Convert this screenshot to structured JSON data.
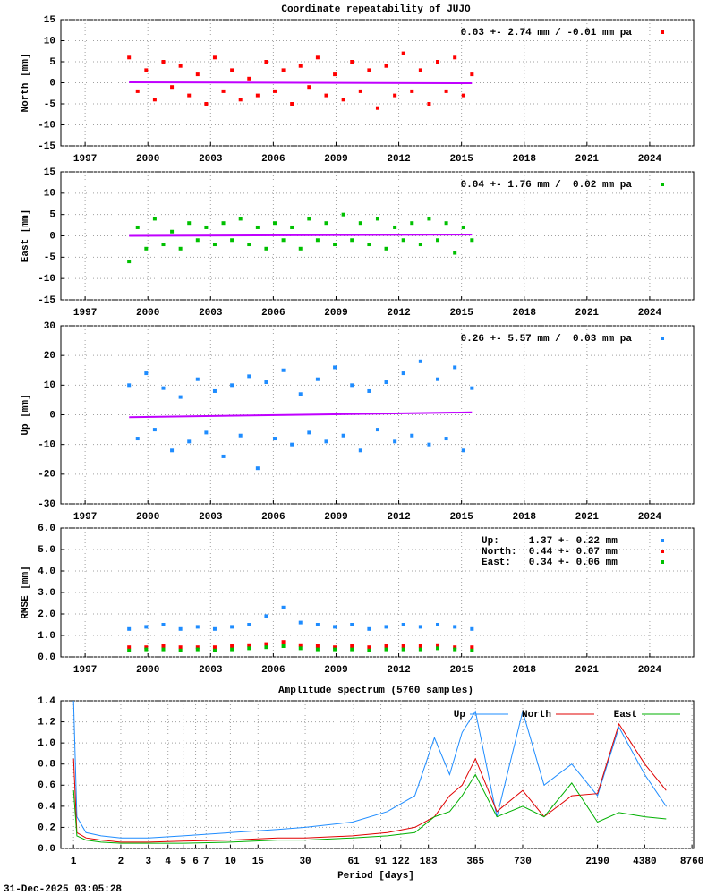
{
  "chart_data": [
    {
      "type": "scatter",
      "title": "Coordinate repeatability of JUJO",
      "ylabel": "North [mm]",
      "xlim": [
        1995.84,
        2026.1
      ],
      "xticks": [
        1997,
        2000,
        2003,
        2006,
        2009,
        2012,
        2015,
        2018,
        2021,
        2024
      ],
      "ylim": [
        -15,
        15
      ],
      "yticks": [
        -15,
        -10,
        -5,
        0,
        5,
        10,
        15
      ],
      "grid": true,
      "legend": "upper right",
      "x": [
        1999.1,
        1999.51,
        1999.92,
        2000.33,
        2000.74,
        2001.15,
        2001.56,
        2001.97,
        2002.38,
        2002.79,
        2003.2,
        2003.61,
        2004.02,
        2004.43,
        2004.84,
        2005.25,
        2005.66,
        2006.07,
        2006.48,
        2006.89,
        2007.3,
        2007.71,
        2008.12,
        2008.53,
        2008.94,
        2009.35,
        2009.76,
        2010.17,
        2010.58,
        2010.99,
        2011.4,
        2011.81,
        2012.22,
        2012.63,
        2013.04,
        2013.45,
        2013.86,
        2014.27,
        2014.68,
        2015.09,
        2015.5
      ],
      "series": [
        {
          "name": "0.03 +- 2.74 mm / -0.01 mm pa",
          "color": "#ff0000",
          "values": [
            6,
            -2,
            3,
            -4,
            5,
            -1,
            4,
            -3,
            2,
            -5,
            6,
            -2,
            3,
            -4,
            1,
            -3,
            5,
            -2,
            3,
            -5,
            4,
            -1,
            6,
            -3,
            2,
            -4,
            5,
            -2,
            3,
            -6,
            4,
            -3,
            7,
            -2,
            3,
            -5,
            5,
            -2,
            6,
            -3,
            2
          ]
        }
      ],
      "trend": {
        "x": [
          1999.1,
          2015.5
        ],
        "values": [
          0.1,
          -0.1
        ],
        "color": "#c000ff"
      }
    },
    {
      "type": "scatter",
      "ylabel": "East [mm]",
      "xlim": [
        1995.84,
        2026.1
      ],
      "xticks": [
        1997,
        2000,
        2003,
        2006,
        2009,
        2012,
        2015,
        2018,
        2021,
        2024
      ],
      "ylim": [
        -15,
        15
      ],
      "yticks": [
        -15,
        -10,
        -5,
        0,
        5,
        10,
        15
      ],
      "grid": true,
      "legend": "upper right",
      "x": [
        1999.1,
        1999.51,
        1999.92,
        2000.33,
        2000.74,
        2001.15,
        2001.56,
        2001.97,
        2002.38,
        2002.79,
        2003.2,
        2003.61,
        2004.02,
        2004.43,
        2004.84,
        2005.25,
        2005.66,
        2006.07,
        2006.48,
        2006.89,
        2007.3,
        2007.71,
        2008.12,
        2008.53,
        2008.94,
        2009.35,
        2009.76,
        2010.17,
        2010.58,
        2010.99,
        2011.4,
        2011.81,
        2012.22,
        2012.63,
        2013.04,
        2013.45,
        2013.86,
        2014.27,
        2014.68,
        2015.09,
        2015.5
      ],
      "series": [
        {
          "name": "0.04 +- 1.76 mm /  0.02 mm pa",
          "color": "#00c000",
          "values": [
            -6,
            2,
            -3,
            4,
            -2,
            1,
            -3,
            3,
            -1,
            2,
            -2,
            3,
            -1,
            4,
            -2,
            2,
            -3,
            3,
            -1,
            2,
            -3,
            4,
            -1,
            3,
            -2,
            5,
            -1,
            3,
            -2,
            4,
            -3,
            2,
            -1,
            3,
            -2,
            4,
            -1,
            3,
            -4,
            2,
            -1
          ]
        }
      ],
      "trend": {
        "x": [
          1999.1,
          2015.5
        ],
        "values": [
          0,
          0.3
        ],
        "color": "#c000ff"
      }
    },
    {
      "type": "scatter",
      "ylabel": "Up [mm]",
      "xlim": [
        1995.84,
        2026.1
      ],
      "xticks": [
        1997,
        2000,
        2003,
        2006,
        2009,
        2012,
        2015,
        2018,
        2021,
        2024
      ],
      "ylim": [
        -30,
        30
      ],
      "yticks": [
        -30,
        -20,
        -10,
        0,
        10,
        20,
        30
      ],
      "grid": true,
      "legend": "upper right",
      "x": [
        1999.1,
        1999.51,
        1999.92,
        2000.33,
        2000.74,
        2001.15,
        2001.56,
        2001.97,
        2002.38,
        2002.79,
        2003.2,
        2003.61,
        2004.02,
        2004.43,
        2004.84,
        2005.25,
        2005.66,
        2006.07,
        2006.48,
        2006.89,
        2007.3,
        2007.71,
        2008.12,
        2008.53,
        2008.94,
        2009.35,
        2009.76,
        2010.17,
        2010.58,
        2010.99,
        2011.4,
        2011.81,
        2012.22,
        2012.63,
        2013.04,
        2013.45,
        2013.86,
        2014.27,
        2014.68,
        2015.09,
        2015.5
      ],
      "series": [
        {
          "name": "0.26 +- 5.57 mm /  0.03 mm pa",
          "color": "#1e8cff",
          "values": [
            10,
            -8,
            14,
            -5,
            9,
            -12,
            6,
            -9,
            12,
            -6,
            8,
            -14,
            10,
            -7,
            13,
            -18,
            11,
            -8,
            15,
            -10,
            7,
            -6,
            12,
            -9,
            16,
            -7,
            10,
            -12,
            8,
            -5,
            11,
            -9,
            14,
            -7,
            18,
            -10,
            12,
            -8,
            16,
            -12,
            9
          ]
        }
      ],
      "trend": {
        "x": [
          1999.1,
          2015.5
        ],
        "values": [
          -0.8,
          0.8
        ],
        "color": "#c000ff"
      }
    },
    {
      "type": "scatter",
      "ylabel": "RMSE [mm]",
      "xlim": [
        1995.84,
        2026.1
      ],
      "xticks": [
        1997,
        2000,
        2003,
        2006,
        2009,
        2012,
        2015,
        2018,
        2021,
        2024
      ],
      "ylim": [
        0,
        6
      ],
      "yticks": [
        {
          "value": 0,
          "label": "0.0"
        },
        {
          "value": 1,
          "label": "1.0"
        },
        {
          "value": 2,
          "label": "2.0"
        },
        {
          "value": 3,
          "label": "3.0"
        },
        {
          "value": 4,
          "label": "4.0"
        },
        {
          "value": 5,
          "label": "5.0"
        },
        {
          "value": 6,
          "label": "6.0"
        }
      ],
      "grid": true,
      "legend": "upper right",
      "x": [
        1999.1,
        1999.92,
        2000.74,
        2001.56,
        2002.38,
        2003.2,
        2004.02,
        2004.84,
        2005.66,
        2006.48,
        2007.3,
        2008.12,
        2008.94,
        2009.76,
        2010.58,
        2011.4,
        2012.22,
        2013.04,
        2013.86,
        2014.68,
        2015.5
      ],
      "series": [
        {
          "name": "Up:     1.37 +- 0.22 mm",
          "color": "#1e8cff",
          "values": [
            1.3,
            1.4,
            1.5,
            1.3,
            1.4,
            1.3,
            1.4,
            1.5,
            1.9,
            2.3,
            1.6,
            1.5,
            1.4,
            1.5,
            1.3,
            1.4,
            1.5,
            1.4,
            1.5,
            1.4,
            1.3
          ]
        },
        {
          "name": "North:  0.44 +- 0.07 mm",
          "color": "#ff0000",
          "values": [
            0.45,
            0.45,
            0.5,
            0.45,
            0.45,
            0.45,
            0.5,
            0.55,
            0.6,
            0.7,
            0.55,
            0.5,
            0.45,
            0.5,
            0.45,
            0.5,
            0.5,
            0.5,
            0.55,
            0.45,
            0.45
          ]
        },
        {
          "name": "East:   0.34 +- 0.06 mm",
          "color": "#00c000",
          "values": [
            0.3,
            0.35,
            0.35,
            0.3,
            0.35,
            0.3,
            0.35,
            0.4,
            0.45,
            0.5,
            0.4,
            0.35,
            0.35,
            0.35,
            0.3,
            0.35,
            0.35,
            0.35,
            0.4,
            0.35,
            0.3
          ]
        }
      ]
    },
    {
      "type": "line",
      "title": "Amplitude spectrum (5760 samples)",
      "xlabel": "Period [days]",
      "xscale": "log",
      "xlim": [
        0.83,
        8980
      ],
      "xticks": [
        1,
        2,
        3,
        4,
        5,
        6,
        7,
        10,
        15,
        30,
        61,
        91,
        122,
        183,
        365,
        730,
        2190,
        4380,
        8760
      ],
      "ylim": [
        0,
        1.4
      ],
      "yticks": [
        {
          "value": 0,
          "label": "0.0"
        },
        0.2,
        0.4,
        0.6,
        0.8,
        {
          "value": 1,
          "label": "1.0"
        },
        1.2,
        1.4
      ],
      "grid": true,
      "legend": "top",
      "x": [
        1,
        1.05,
        1.2,
        1.5,
        2,
        3,
        5,
        10,
        20,
        30,
        60,
        100,
        150,
        200,
        250,
        300,
        365,
        500,
        730,
        1000,
        1500,
        2190,
        3000,
        4380,
        6000
      ],
      "series": [
        {
          "name": "Up",
          "color": "#1e8cff",
          "values": [
            1.4,
            0.3,
            0.15,
            0.12,
            0.1,
            0.1,
            0.12,
            0.15,
            0.18,
            0.2,
            0.25,
            0.35,
            0.5,
            1.05,
            0.7,
            1.1,
            1.3,
            0.3,
            1.3,
            0.6,
            0.8,
            0.5,
            1.15,
            0.7,
            0.4
          ]
        },
        {
          "name": "North",
          "color": "#e00000",
          "values": [
            0.85,
            0.15,
            0.1,
            0.08,
            0.06,
            0.06,
            0.07,
            0.08,
            0.1,
            0.1,
            0.12,
            0.15,
            0.2,
            0.3,
            0.5,
            0.6,
            0.85,
            0.35,
            0.55,
            0.3,
            0.5,
            0.52,
            1.18,
            0.8,
            0.55
          ]
        },
        {
          "name": "East",
          "color": "#00b000",
          "values": [
            0.55,
            0.12,
            0.08,
            0.06,
            0.05,
            0.05,
            0.05,
            0.06,
            0.08,
            0.08,
            0.1,
            0.12,
            0.15,
            0.3,
            0.35,
            0.5,
            0.7,
            0.3,
            0.4,
            0.3,
            0.62,
            0.25,
            0.34,
            0.3,
            0.28
          ]
        }
      ]
    }
  ],
  "footer": {
    "timestamp": "31-Dec-2025 03:05:28"
  }
}
